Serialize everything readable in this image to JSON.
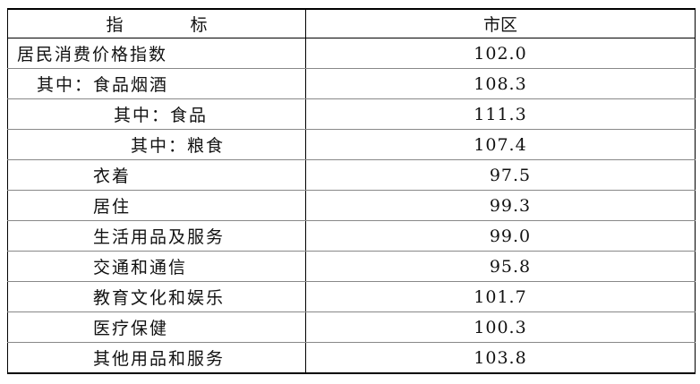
{
  "table": {
    "headers": {
      "indicator": "指　标",
      "region": "市区"
    },
    "rows": [
      {
        "label": "居民消费价格指数",
        "value": "102.0"
      },
      {
        "label": "其中：食品烟酒",
        "value": "108.3"
      },
      {
        "label": "其中：食品",
        "value": "111.3"
      },
      {
        "label": "其中：粮食",
        "value": "107.4"
      },
      {
        "label": "衣着",
        "value": "97.5"
      },
      {
        "label": "居住",
        "value": "99.3"
      },
      {
        "label": "生活用品及服务",
        "value": "99.0"
      },
      {
        "label": "交通和通信",
        "value": "95.8"
      },
      {
        "label": "教育文化和娱乐",
        "value": "101.7"
      },
      {
        "label": "医疗保健",
        "value": "100.3"
      },
      {
        "label": "其他用品和服务",
        "value": "103.8"
      }
    ]
  }
}
